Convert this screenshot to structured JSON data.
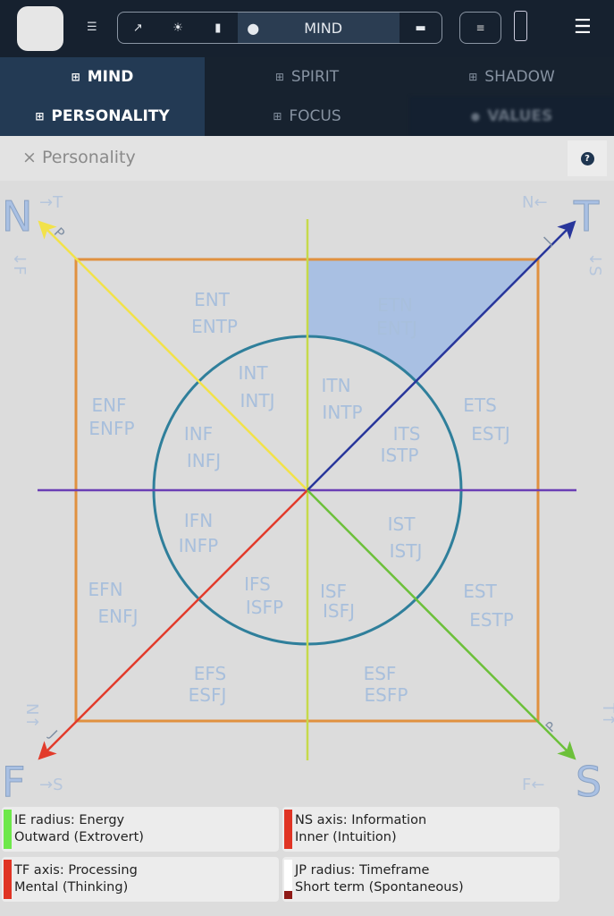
{
  "header": {
    "mode_label": "MIND",
    "icons": [
      "app-logo",
      "list-icon",
      "trend-icon",
      "sun-icon",
      "person-icon",
      "mind-icon",
      "grid-icon",
      "sort-icon",
      "battery-icon",
      "menu-icon"
    ]
  },
  "tabs": [
    {
      "label": "MIND",
      "active": true
    },
    {
      "label": "SPIRIT"
    },
    {
      "label": "SHADOW"
    },
    {
      "label": "PERSONALITY",
      "active": true
    },
    {
      "label": "FOCUS"
    },
    {
      "label": "VALUES",
      "blurred": true
    }
  ],
  "section": {
    "close": "×",
    "title": "Personality",
    "help": "?"
  },
  "chart": {
    "corners": {
      "n": "N",
      "t": "T",
      "f": "F",
      "s": "S",
      "tl_h": "→T",
      "tl_v": "↓F",
      "tr_h": "N←",
      "tr_v": "↓S",
      "bl_v": "N↑",
      "bl_h": "→S",
      "br_v": "T↑",
      "br_h": "F←"
    },
    "arrow_tags": {
      "yellow": "P",
      "blue": "J",
      "red": "J",
      "green": "P"
    },
    "highlighted_region": "ETN",
    "colors": {
      "square": "#e0913f",
      "circle": "#2f7f9b",
      "vertical": "#c6d94a",
      "horizontal": "#6a3fb5",
      "yellow": "#f2e24a",
      "blue": "#28369b",
      "red": "#e23b2b",
      "green": "#6cc03a",
      "highlight": "#a9c0e3"
    },
    "regions": [
      {
        "a": "ENT",
        "b": "ENTP"
      },
      {
        "a": "ETN",
        "b": "ENTJ"
      },
      {
        "a": "INT",
        "b": "INTJ"
      },
      {
        "a": "ITN",
        "b": "INTP"
      },
      {
        "a": "ENF",
        "b": "ENFP"
      },
      {
        "a": "ETS",
        "b": "ESTJ"
      },
      {
        "a": "INF",
        "b": "INFJ"
      },
      {
        "a": "ITS",
        "b": "ISTP"
      },
      {
        "a": "IFN",
        "b": "INFP"
      },
      {
        "a": "IST",
        "b": "ISTJ"
      },
      {
        "a": "EFN",
        "b": "ENFJ"
      },
      {
        "a": "IFS",
        "b": "ISFP"
      },
      {
        "a": "ISF",
        "b": "ISFJ"
      },
      {
        "a": "EST",
        "b": "ESTP"
      },
      {
        "a": "EFS",
        "b": "ESFJ"
      },
      {
        "a": "ESF",
        "b": "ESFP"
      }
    ]
  },
  "legend": [
    {
      "title": "IE radius: Energy",
      "value": "Outward (Extrovert)",
      "color": "#6ee84a"
    },
    {
      "title": "NS axis: Information",
      "value": "Inner (Intuition)",
      "color": "#e03424"
    },
    {
      "title": "TF axis: Processing",
      "value": "Mental (Thinking)",
      "color": "#e03424"
    },
    {
      "title": "JP radius: Timeframe",
      "value": "Short term (Spontaneous)",
      "color": "#8e1a16",
      "level": 0.2
    }
  ]
}
